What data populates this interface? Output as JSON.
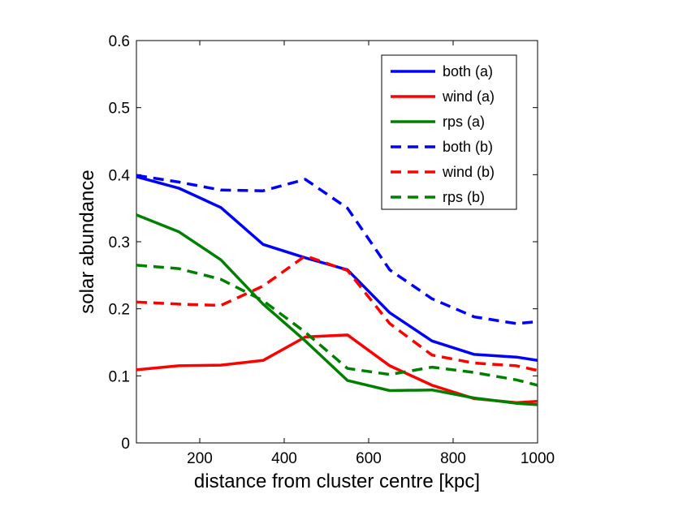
{
  "chart_data": {
    "type": "line",
    "title": "",
    "xlabel": "distance from cluster centre [kpc]",
    "ylabel": "solar abundance",
    "xlim": [
      50,
      1000
    ],
    "ylim": [
      0,
      0.6
    ],
    "xticks": [
      200,
      400,
      600,
      800,
      1000
    ],
    "yticks": [
      0,
      0.1,
      0.2,
      0.3,
      0.4,
      0.5,
      0.6
    ],
    "xtick_labels": [
      "200",
      "400",
      "600",
      "800",
      "1000"
    ],
    "ytick_labels": [
      "0",
      "0.1",
      "0.2",
      "0.3",
      "0.4",
      "0.5",
      "0.6"
    ],
    "grid": false,
    "legend_position": "top-right",
    "x": [
      50,
      150,
      250,
      350,
      450,
      550,
      650,
      750,
      850,
      950,
      1000
    ],
    "series": [
      {
        "name": "both (a)",
        "color": "#0000ff",
        "style": "solid",
        "values": [
          0.397,
          0.38,
          0.351,
          0.296,
          0.276,
          0.258,
          0.194,
          0.152,
          0.132,
          0.128,
          0.123
        ]
      },
      {
        "name": "wind (a)",
        "color": "#ff0000",
        "style": "solid",
        "values": [
          0.109,
          0.115,
          0.116,
          0.123,
          0.158,
          0.161,
          0.115,
          0.086,
          0.066,
          0.06,
          0.062
        ]
      },
      {
        "name": "rps (a)",
        "color": "#008000",
        "style": "solid",
        "values": [
          0.34,
          0.315,
          0.273,
          0.207,
          0.152,
          0.093,
          0.078,
          0.079,
          0.067,
          0.059,
          0.057
        ]
      },
      {
        "name": "both (b)",
        "color": "#0000ff",
        "style": "dashed",
        "values": [
          0.399,
          0.389,
          0.377,
          0.376,
          0.393,
          0.35,
          0.258,
          0.215,
          0.188,
          0.178,
          0.181
        ]
      },
      {
        "name": "wind (b)",
        "color": "#ff0000",
        "style": "dashed",
        "values": [
          0.21,
          0.207,
          0.205,
          0.234,
          0.279,
          0.257,
          0.178,
          0.131,
          0.119,
          0.115,
          0.108
        ]
      },
      {
        "name": "rps (b)",
        "color": "#008000",
        "style": "dashed",
        "values": [
          0.265,
          0.26,
          0.244,
          0.212,
          0.165,
          0.111,
          0.102,
          0.113,
          0.105,
          0.094,
          0.086
        ]
      }
    ]
  }
}
